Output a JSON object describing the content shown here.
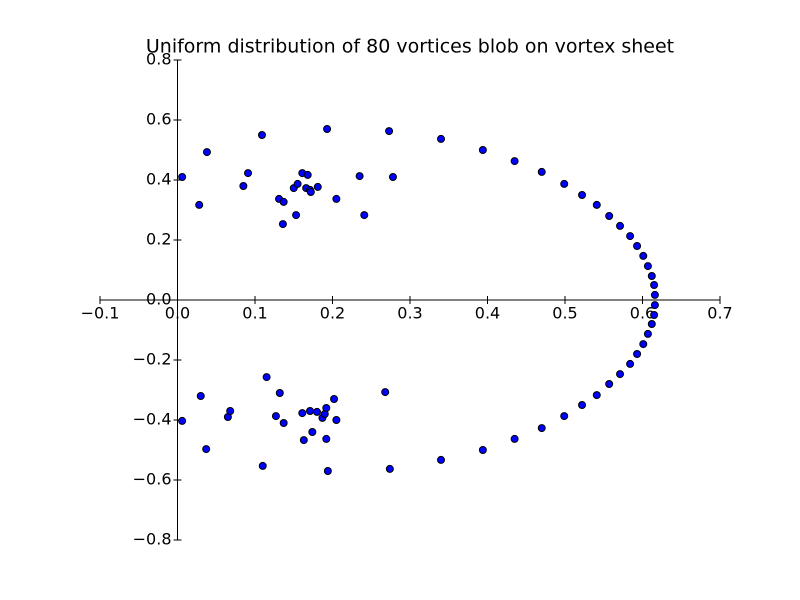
{
  "chart_data": {
    "type": "scatter",
    "title": "Uniform distribution of 80 vortices blob on vortex sheet",
    "series": [
      {
        "color": "#0000ff",
        "x": [
          0.006,
          0.028,
          0.038,
          0.085,
          0.091,
          0.109,
          0.131,
          0.136,
          0.137,
          0.15,
          0.153,
          0.155,
          0.161,
          0.166,
          0.168,
          0.171,
          0.172,
          0.181,
          0.193,
          0.205,
          0.235,
          0.241,
          0.273,
          0.278,
          0.34,
          0.394,
          0.435,
          0.47,
          0.499,
          0.522,
          0.541,
          0.557,
          0.571,
          0.584,
          0.593,
          0.601,
          0.607,
          0.612,
          0.615,
          0.616,
          0.006,
          0.03,
          0.037,
          0.065,
          0.068,
          0.11,
          0.115,
          0.127,
          0.132,
          0.137,
          0.161,
          0.163,
          0.171,
          0.174,
          0.18,
          0.187,
          0.19,
          0.192,
          0.192,
          0.194,
          0.202,
          0.205,
          0.268,
          0.274,
          0.34,
          0.394,
          0.435,
          0.47,
          0.499,
          0.522,
          0.541,
          0.557,
          0.571,
          0.584,
          0.593,
          0.601,
          0.607,
          0.612,
          0.615,
          0.616
        ],
        "y": [
          0.41,
          0.317,
          0.493,
          0.38,
          0.423,
          0.55,
          0.337,
          0.253,
          0.327,
          0.373,
          0.283,
          0.387,
          0.423,
          0.373,
          0.417,
          0.367,
          0.36,
          0.377,
          0.57,
          0.337,
          0.413,
          0.283,
          0.563,
          0.41,
          0.537,
          0.5,
          0.463,
          0.427,
          0.387,
          0.35,
          0.317,
          0.28,
          0.247,
          0.213,
          0.18,
          0.147,
          0.113,
          0.08,
          0.05,
          0.017,
          -0.403,
          -0.32,
          -0.497,
          -0.39,
          -0.37,
          -0.553,
          -0.257,
          -0.387,
          -0.31,
          -0.41,
          -0.377,
          -0.467,
          -0.37,
          -0.44,
          -0.373,
          -0.393,
          -0.38,
          -0.36,
          -0.463,
          -0.57,
          -0.33,
          -0.4,
          -0.307,
          -0.563,
          -0.533,
          -0.5,
          -0.463,
          -0.427,
          -0.387,
          -0.35,
          -0.317,
          -0.28,
          -0.247,
          -0.213,
          -0.18,
          -0.147,
          -0.113,
          -0.08,
          -0.05,
          -0.017
        ]
      }
    ],
    "xlim": [
      -0.1,
      0.7
    ],
    "ylim": [
      -0.8,
      0.8
    ],
    "xticks": [
      {
        "value": -0.1,
        "label": "−0.1"
      },
      {
        "value": 0,
        "label": "0.0"
      },
      0.1,
      0.2,
      0.3,
      0.4,
      0.5,
      0.6,
      0.7
    ],
    "yticks": [
      {
        "value": -0.8,
        "label": "−0.8"
      },
      {
        "value": -0.6,
        "label": "−0.6"
      },
      {
        "value": -0.4,
        "label": "−0.4"
      },
      {
        "value": -0.2,
        "label": "−0.2"
      },
      {
        "value": 0,
        "label": "0.0"
      },
      0.2,
      0.4,
      0.6,
      0.8
    ]
  }
}
